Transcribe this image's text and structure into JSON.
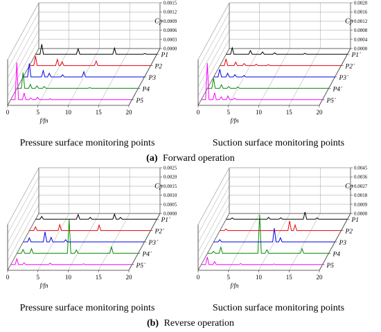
{
  "figure": {
    "panel_a": {
      "letter": "(a)",
      "caption": "Forward operation",
      "captions_sub": [
        "Pressure surface monitoring points",
        "Suction surface monitoring points"
      ]
    },
    "panel_b": {
      "letter": "(b)",
      "caption": "Reverse operation",
      "captions_sub": [
        "Pressure surface monitoring points",
        "Suction surface monitoring points"
      ]
    }
  },
  "chart_data": [
    {
      "type": "line",
      "title": "",
      "xlabel": "f/fn",
      "ylabel": "Cp",
      "xlim": [
        0,
        20
      ],
      "xticks": [
        "0",
        "5",
        "10",
        "15",
        "20"
      ],
      "zlim": [
        0,
        0.0015
      ],
      "zticks": [
        "0.0000",
        "0.0003",
        "0.0006",
        "0.0009",
        "0.0012",
        "0.0015"
      ],
      "colors": [
        "#000000",
        "#e8000b",
        "#0000e6",
        "#008c00",
        "#ff00ff"
      ],
      "series": [
        {
          "name": "P1",
          "peaks": [
            [
              1,
              0.00033
            ],
            [
              7,
              0.00018
            ],
            [
              13,
              0.0002
            ],
            [
              18,
              2e-05
            ]
          ]
        },
        {
          "name": "P2",
          "peaks": [
            [
              1,
              0.00031
            ],
            [
              4.6,
              0.0002
            ],
            [
              5.4,
              0.00012
            ],
            [
              11,
              0.00015
            ]
          ]
        },
        {
          "name": "P3",
          "peaks": [
            [
              1,
              0.00044
            ],
            [
              3.3,
              0.00021
            ],
            [
              4.3,
              0.00012
            ],
            [
              6.5,
              7e-05
            ],
            [
              10,
              0.00017
            ]
          ]
        },
        {
          "name": "P4",
          "peaks": [
            [
              1,
              0.00052
            ],
            [
              2.2,
              0.00013
            ],
            [
              3.3,
              8e-05
            ],
            [
              4.5,
              6e-05
            ],
            [
              12,
              2e-05
            ]
          ]
        },
        {
          "name": "P5",
          "peaks": [
            [
              1,
              0.00122
            ],
            [
              2.2,
              0.00022
            ],
            [
              3.3,
              6e-05
            ],
            [
              4.4,
              8e-05
            ],
            [
              6.5,
              3e-05
            ]
          ]
        }
      ]
    },
    {
      "type": "line",
      "title": "",
      "xlabel": "f/fn",
      "ylabel": "Cp",
      "xlim": [
        0,
        20
      ],
      "xticks": [
        "0",
        "5",
        "10",
        "15",
        "20"
      ],
      "zlim": [
        0,
        0.002
      ],
      "zticks": [
        "0.0000",
        "0.0004",
        "0.0008",
        "0.0012",
        "0.0016",
        "0.0020"
      ],
      "colors": [
        "#000000",
        "#e8000b",
        "#0000e6",
        "#008c00",
        "#ff00ff"
      ],
      "series": [
        {
          "name": "P1´",
          "peaks": [
            [
              1,
              0.00028
            ],
            [
              4,
              0.00016
            ],
            [
              6,
              0.0001
            ],
            [
              8,
              6e-05
            ],
            [
              13,
              4e-05
            ]
          ]
        },
        {
          "name": "P2´",
          "peaks": [
            [
              1,
              0.00029
            ],
            [
              2.6,
              0.00015
            ],
            [
              4,
              9e-05
            ],
            [
              6,
              6e-05
            ],
            [
              8,
              4e-05
            ]
          ]
        },
        {
          "name": "P3´",
          "peaks": [
            [
              1,
              0.00034
            ],
            [
              2.3,
              0.00016
            ],
            [
              3.5,
              0.0001
            ],
            [
              5,
              6e-05
            ]
          ]
        },
        {
          "name": "P4´",
          "peaks": [
            [
              1,
              0.00044
            ],
            [
              2.3,
              0.00015
            ],
            [
              3.5,
              8e-05
            ],
            [
              5,
              6e-05
            ]
          ]
        },
        {
          "name": "P5´",
          "peaks": [
            [
              1,
              0.0016
            ],
            [
              2.2,
              0.0003
            ],
            [
              3.3,
              0.00012
            ],
            [
              4.4,
              0.00016
            ],
            [
              5.5,
              7e-05
            ]
          ]
        }
      ]
    },
    {
      "type": "line",
      "title": "",
      "xlabel": "f/fn",
      "ylabel": "Cp",
      "xlim": [
        0,
        20
      ],
      "xticks": [
        "0",
        "5",
        "10",
        "15",
        "20"
      ],
      "zlim": [
        0,
        0.0025
      ],
      "zticks": [
        "0.0000",
        "0.0005",
        "0.0010",
        "0.0015",
        "0.0020",
        "0.0025"
      ],
      "colors": [
        "#000000",
        "#e8000b",
        "#0000e6",
        "#008c00",
        "#ff00ff"
      ],
      "series": [
        {
          "name": "P1´",
          "peaks": [
            [
              1,
              0.00015
            ],
            [
              7,
              0.00025
            ],
            [
              9,
              0.0001
            ],
            [
              13,
              0.00028
            ],
            [
              14,
              0.0001
            ]
          ]
        },
        {
          "name": "P2´",
          "peaks": [
            [
              1,
              0.0002
            ],
            [
              5,
              0.00032
            ],
            [
              11.5,
              0.0003
            ]
          ]
        },
        {
          "name": "P3´",
          "peaks": [
            [
              1,
              0.00022
            ],
            [
              3.6,
              0.00055
            ],
            [
              4.6,
              0.00025
            ],
            [
              7,
              0.00012
            ]
          ]
        },
        {
          "name": "P4´",
          "peaks": [
            [
              1,
              0.0002
            ],
            [
              2.4,
              0.00025
            ],
            [
              8.6,
              0.00185
            ],
            [
              9.8,
              0.00018
            ],
            [
              15.6,
              0.00035
            ]
          ]
        },
        {
          "name": "P5´",
          "peaks": [
            [
              1,
              0.00032
            ],
            [
              2.2,
              0.0001
            ],
            [
              6.5,
              8e-05
            ],
            [
              12,
              4e-05
            ]
          ]
        }
      ]
    },
    {
      "type": "line",
      "title": "",
      "xlabel": "f/fn",
      "ylabel": "Cp",
      "xlim": [
        0,
        20
      ],
      "xticks": [
        "0",
        "5",
        "10",
        "15",
        "20"
      ],
      "zlim": [
        0,
        0.0045
      ],
      "zticks": [
        "0.0000",
        "0.0009",
        "0.0018",
        "0.0027",
        "0.0036",
        "0.0045"
      ],
      "colors": [
        "#000000",
        "#e8000b",
        "#0000e6",
        "#008c00",
        "#ff00ff"
      ],
      "series": [
        {
          "name": "P1",
          "peaks": [
            [
              1,
              0.00012
            ],
            [
              7,
              0.00018
            ],
            [
              9,
              0.00014
            ],
            [
              13,
              0.0007
            ],
            [
              15,
              0.00012
            ]
          ]
        },
        {
          "name": "P2",
          "peaks": [
            [
              1,
              0.00016
            ],
            [
              11.5,
              0.00095
            ],
            [
              12.4,
              0.00055
            ]
          ]
        },
        {
          "name": "P3",
          "peaks": [
            [
              1,
              0.00022
            ],
            [
              10,
              0.00135
            ],
            [
              11,
              0.0004
            ]
          ]
        },
        {
          "name": "P4",
          "peaks": [
            [
              1,
              0.0002
            ],
            [
              2.2,
              0.0006
            ],
            [
              8.6,
              0.0038
            ],
            [
              9.8,
              0.00035
            ],
            [
              15.6,
              0.00045
            ]
          ]
        },
        {
          "name": "P5",
          "peaks": [
            [
              1,
              0.00075
            ],
            [
              2.2,
              0.0003
            ],
            [
              6.5,
              0.0001
            ],
            [
              12,
              6e-05
            ]
          ]
        }
      ]
    }
  ]
}
